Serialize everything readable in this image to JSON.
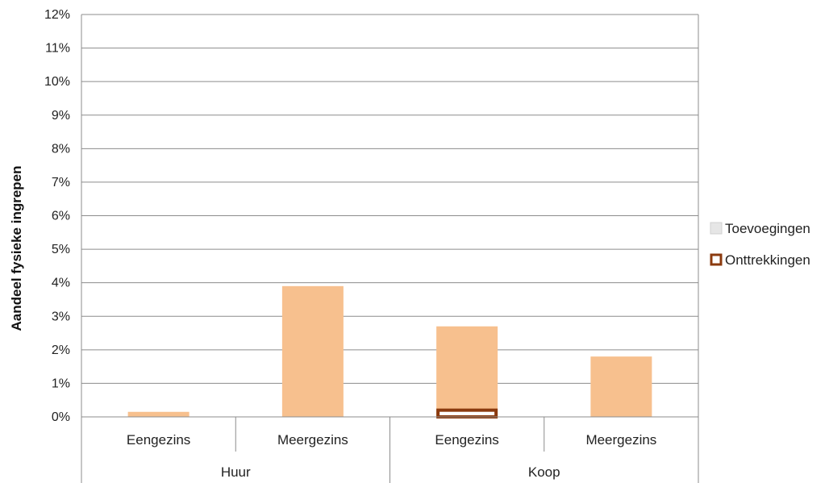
{
  "chart_data": {
    "type": "bar",
    "ylabel": "Aandeel fysieke ingrepen",
    "ylim": [
      0,
      12
    ],
    "y_unit": "%",
    "yticks": [
      "0%",
      "1%",
      "2%",
      "3%",
      "4%",
      "5%",
      "6%",
      "7%",
      "8%",
      "9%",
      "10%",
      "11%",
      "12%"
    ],
    "grid": true,
    "legend_position": "right",
    "groups": [
      {
        "label": "Huur",
        "categories": [
          "Eengezins",
          "Meergezins"
        ]
      },
      {
        "label": "Koop",
        "categories": [
          "Eengezins",
          "Meergezins"
        ]
      }
    ],
    "categories": [
      "Eengezins",
      "Meergezins",
      "Eengezins",
      "Meergezins"
    ],
    "series": [
      {
        "name": "Toevoegingen",
        "values": [
          0.15,
          3.9,
          2.7,
          1.8
        ],
        "color": "#f7c08e"
      },
      {
        "name": "Onttrekkingen",
        "values": [
          0,
          0,
          0.2,
          0
        ],
        "color": "#ffffff",
        "border_color": "#8b3a0e"
      }
    ]
  }
}
